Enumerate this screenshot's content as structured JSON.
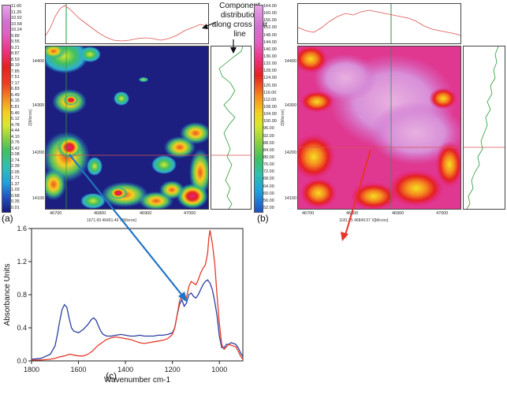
{
  "panels": {
    "a": {
      "label": "(a)"
    },
    "b": {
      "label": "(b)"
    },
    "c": {
      "label": "(c)"
    }
  },
  "map_a": {
    "colorbar_ticks": [
      "11.60",
      "11.26",
      "10.92",
      "10.58",
      "10.24",
      "9.89",
      "9.55",
      "9.21",
      "8.87",
      "8.53",
      "8.19",
      "7.85",
      "7.51",
      "7.17",
      "6.83",
      "6.49",
      "6.15",
      "5.81",
      "5.46",
      "5.12",
      "4.78",
      "4.44",
      "4.10",
      "3.76",
      "3.42",
      "3.08",
      "2.74",
      "2.39",
      "2.05",
      "1.71",
      "1.37",
      "1.03",
      "0.68",
      "0.35",
      "0.01"
    ],
    "y_ticks": [
      "14400",
      "14300",
      "14200",
      "14100"
    ],
    "y_label": "Z[Micron]",
    "x_ticks": [
      "46700",
      "46800",
      "46900",
      "47000"
    ],
    "x_readout": "1671.69  46491.49  X[Micron]"
  },
  "map_b": {
    "colorbar_ticks": [
      "164.00",
      "160.00",
      "156.00",
      "152.00",
      "148.00",
      "144.00",
      "140.00",
      "136.00",
      "132.00",
      "128.00",
      "124.00",
      "120.00",
      "116.00",
      "112.00",
      "108.00",
      "104.00",
      "100.00",
      "96.00",
      "92.00",
      "88.00",
      "84.00",
      "80.00",
      "76.00",
      "72.00",
      "68.00",
      "64.00",
      "60.00",
      "56.00",
      "52.00"
    ],
    "y_ticks": [
      "14400",
      "14300",
      "14200",
      "14100"
    ],
    "y_label": "Z[Micron]",
    "x_ticks": [
      "46700",
      "46800",
      "46900",
      "47000"
    ],
    "x_readout": "1181.95  46849.57  X[Micron]"
  },
  "annotation": {
    "text": "Component distribution along cross hair line"
  },
  "colors": {
    "blue_series": "#2b3f9e",
    "red_series": "#e63a2a",
    "blue_arrow": "#1f74c4",
    "red_arrow": "#e8322a",
    "trace": "#d9534f",
    "trace_green": "#2e9a3c"
  },
  "chart_data": {
    "type": "line",
    "title": "",
    "xlabel": "Wavenumber cm-1",
    "ylabel": "Absorbance Units",
    "xlim": [
      1800,
      900
    ],
    "ylim": [
      0,
      1.6
    ],
    "x_ticks": [
      1800,
      1600,
      1400,
      1200,
      1000
    ],
    "y_ticks": [
      0.0,
      0.4,
      0.8,
      1.2,
      1.6
    ],
    "y_tick_labels": [
      "0.0",
      "0.4",
      "0.8",
      "1.2",
      "1.6"
    ],
    "x_tick_labels": [
      "1800",
      "1600",
      "1400",
      "1200",
      "1000"
    ],
    "series": [
      {
        "color": "blue",
        "x": [
          1800,
          1760,
          1720,
          1700,
          1690,
          1680,
          1670,
          1660,
          1650,
          1640,
          1630,
          1620,
          1600,
          1580,
          1560,
          1545,
          1535,
          1525,
          1515,
          1505,
          1495,
          1480,
          1460,
          1440,
          1420,
          1400,
          1380,
          1360,
          1340,
          1320,
          1300,
          1280,
          1260,
          1240,
          1220,
          1200,
          1190,
          1180,
          1170,
          1160,
          1155,
          1150,
          1140,
          1130,
          1120,
          1110,
          1100,
          1090,
          1080,
          1070,
          1060,
          1050,
          1040,
          1030,
          1020,
          1010,
          1000,
          990,
          980,
          970,
          960,
          950,
          940,
          930,
          920,
          910,
          900
        ],
        "y": [
          0.02,
          0.03,
          0.08,
          0.18,
          0.32,
          0.48,
          0.62,
          0.68,
          0.65,
          0.52,
          0.4,
          0.36,
          0.34,
          0.38,
          0.44,
          0.5,
          0.52,
          0.49,
          0.42,
          0.36,
          0.32,
          0.3,
          0.3,
          0.31,
          0.32,
          0.31,
          0.3,
          0.3,
          0.31,
          0.3,
          0.3,
          0.3,
          0.31,
          0.31,
          0.32,
          0.34,
          0.4,
          0.55,
          0.68,
          0.74,
          0.7,
          0.66,
          0.7,
          0.8,
          0.82,
          0.78,
          0.76,
          0.8,
          0.86,
          0.92,
          0.96,
          0.98,
          0.94,
          0.86,
          0.72,
          0.55,
          0.3,
          0.16,
          0.16,
          0.2,
          0.2,
          0.22,
          0.21,
          0.2,
          0.16,
          0.1,
          0.05
        ]
      },
      {
        "color": "red",
        "x": [
          1800,
          1760,
          1720,
          1700,
          1680,
          1660,
          1650,
          1640,
          1630,
          1620,
          1600,
          1580,
          1560,
          1540,
          1520,
          1500,
          1480,
          1460,
          1440,
          1420,
          1400,
          1380,
          1360,
          1340,
          1320,
          1300,
          1280,
          1260,
          1240,
          1220,
          1200,
          1190,
          1180,
          1170,
          1160,
          1150,
          1140,
          1130,
          1120,
          1110,
          1100,
          1090,
          1080,
          1070,
          1060,
          1050,
          1045,
          1040,
          1035,
          1030,
          1020,
          1010,
          1000,
          990,
          980,
          970,
          960,
          950,
          940,
          930,
          920,
          910,
          900
        ],
        "y": [
          0.01,
          0.01,
          0.02,
          0.03,
          0.05,
          0.06,
          0.07,
          0.08,
          0.08,
          0.07,
          0.06,
          0.06,
          0.08,
          0.12,
          0.18,
          0.22,
          0.26,
          0.28,
          0.29,
          0.28,
          0.27,
          0.26,
          0.24,
          0.22,
          0.21,
          0.22,
          0.23,
          0.24,
          0.25,
          0.27,
          0.32,
          0.4,
          0.55,
          0.72,
          0.8,
          0.74,
          0.76,
          0.9,
          0.96,
          0.94,
          0.92,
          0.98,
          1.06,
          1.12,
          1.16,
          1.3,
          1.48,
          1.58,
          1.5,
          1.42,
          1.18,
          0.8,
          0.45,
          0.2,
          0.14,
          0.17,
          0.2,
          0.19,
          0.18,
          0.17,
          0.12,
          0.06,
          0.02
        ]
      }
    ]
  }
}
